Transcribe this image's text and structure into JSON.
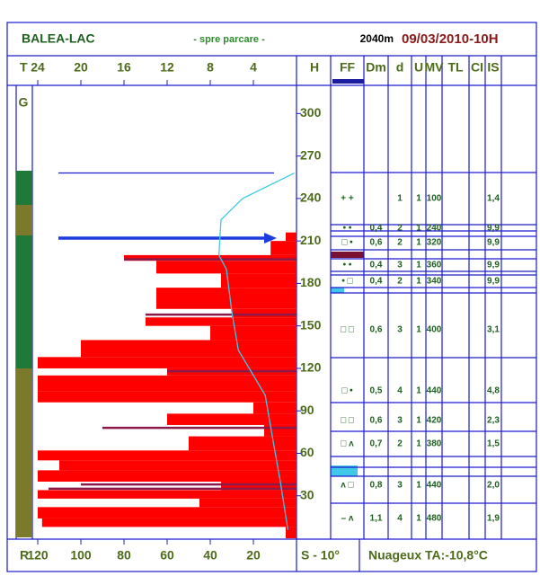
{
  "header": {
    "station": "BALEA-LAC",
    "location": "- spre parcare -",
    "altitude": "2040m",
    "date": "09/03/2010-10H"
  },
  "chart_data": {
    "type": "snow-profile",
    "t_label": "T",
    "tlim": [
      24.5,
      0
    ],
    "tticks": [
      24,
      20,
      16,
      12,
      8,
      4
    ],
    "r_label": "R",
    "rlim": [
      122.5,
      0
    ],
    "rticks": [
      120,
      100,
      80,
      60,
      40,
      20
    ],
    "h_label": "H",
    "hlim": [
      0,
      318
    ],
    "hticks": [
      300,
      270,
      240,
      210,
      180,
      150,
      120,
      90,
      60,
      30
    ],
    "g_label": "G",
    "ram": {
      "color": "#ff0000",
      "bins": [
        0,
        8,
        14,
        22,
        28,
        34,
        40,
        48,
        55,
        62,
        72,
        80,
        88,
        96,
        104,
        115,
        120,
        128,
        140,
        150,
        156,
        162,
        177,
        187,
        196,
        200,
        210,
        216
      ],
      "values": [
        5,
        118,
        120,
        45,
        120,
        35,
        120,
        110,
        120,
        50,
        15,
        60,
        20,
        120,
        120,
        60,
        120,
        100,
        40,
        70,
        30,
        65,
        35,
        65,
        80,
        12,
        5
      ]
    },
    "ram_lines": {
      "color": "#8b1a4a",
      "heights": [
        35,
        38,
        78,
        118,
        158,
        197
      ],
      "values": [
        115,
        100,
        90,
        60,
        70,
        80
      ]
    },
    "temperature": {
      "color": "#40c8e8",
      "heights": [
        258,
        240,
        225,
        200,
        190,
        160,
        133,
        101,
        70,
        40,
        6
      ],
      "values": [
        0.2,
        5,
        7,
        7.2,
        6.5,
        6,
        5.4,
        2.9,
        2.2,
        1.5,
        0.8
      ]
    },
    "surface": 258,
    "marker": 212,
    "table": {
      "columns": [
        "FF",
        "Dm",
        "d",
        "U",
        "MV",
        "TL",
        "CI",
        "IS"
      ],
      "rows": [
        [
          "+ +",
          null,
          "1",
          "1",
          "100",
          null,
          null,
          "1,4"
        ],
        [
          "• •",
          "0,4",
          "2",
          "1",
          "240",
          null,
          null,
          "9,9"
        ],
        [
          "□ •",
          "0,6",
          "2",
          "1",
          "320",
          null,
          null,
          "9,9"
        ],
        [
          "• •",
          "0,4",
          "3",
          "1",
          "360",
          null,
          null,
          "9,9"
        ],
        [
          "• □",
          "0,4",
          "2",
          "1",
          "340",
          null,
          null,
          "9,9"
        ],
        [
          "□ □",
          "0,6",
          "3",
          "1",
          "400",
          null,
          null,
          "3,1"
        ],
        [
          "□ •",
          "0,5",
          "4",
          "1",
          "440",
          null,
          null,
          "4,8"
        ],
        [
          "□ □",
          "0,6",
          "3",
          "1",
          "420",
          null,
          null,
          "2,3"
        ],
        [
          "□ ʌ",
          "0,7",
          "2",
          "1",
          "380",
          null,
          null,
          "1,5"
        ],
        [
          "ʌ □",
          "0,8",
          "3",
          "1",
          "440",
          null,
          null,
          "2,0"
        ],
        [
          "– ʌ",
          "1,1",
          "4",
          "1",
          "480",
          null,
          null,
          "1,9"
        ]
      ]
    }
  },
  "footer": {
    "sky": "S - 10°",
    "weather": "Nuageux TA:-10,8°C"
  }
}
